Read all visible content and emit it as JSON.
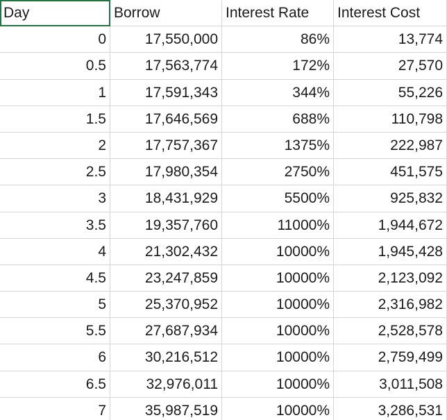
{
  "sheet": {
    "headers": [
      "Day",
      "Borrow",
      "Interest Rate",
      "Interest Cost"
    ],
    "rows": [
      [
        "0",
        "17,550,000",
        "86%",
        "13,774"
      ],
      [
        "0.5",
        "17,563,774",
        "172%",
        "27,570"
      ],
      [
        "1",
        "17,591,343",
        "344%",
        "55,226"
      ],
      [
        "1.5",
        "17,646,569",
        "688%",
        "110,798"
      ],
      [
        "2",
        "17,757,367",
        "1375%",
        "222,987"
      ],
      [
        "2.5",
        "17,980,354",
        "2750%",
        "451,575"
      ],
      [
        "3",
        "18,431,929",
        "5500%",
        "925,832"
      ],
      [
        "3.5",
        "19,357,760",
        "11000%",
        "1,944,672"
      ],
      [
        "4",
        "21,302,432",
        "10000%",
        "1,945,428"
      ],
      [
        "4.5",
        "23,247,859",
        "10000%",
        "2,123,092"
      ],
      [
        "5",
        "25,370,952",
        "10000%",
        "2,316,982"
      ],
      [
        "5.5",
        "27,687,934",
        "10000%",
        "2,528,578"
      ],
      [
        "6",
        "30,216,512",
        "10000%",
        "2,759,499"
      ],
      [
        "6.5",
        "32,976,011",
        "10000%",
        "3,011,508"
      ],
      [
        "7",
        "35,987,519",
        "10000%",
        "3,286,531"
      ]
    ]
  },
  "colors": {
    "gridline": "#d4d4d4",
    "selection": "#217346",
    "text": "#1a1a1a"
  }
}
